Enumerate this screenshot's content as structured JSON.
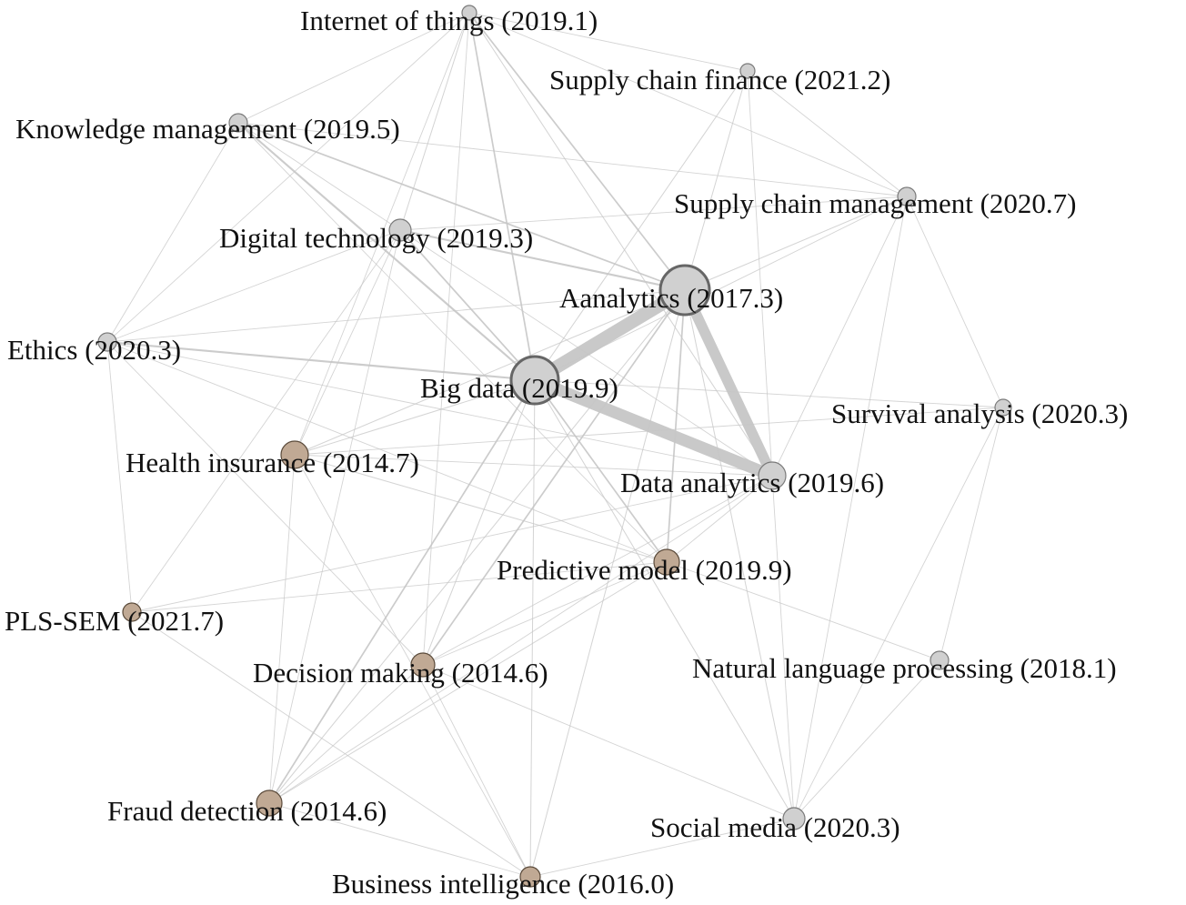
{
  "colors": {
    "default_node": "#d0d0d0",
    "default_stroke": "#7a7a7a",
    "hub_stroke": "#666666",
    "early_node": "#c0a994",
    "early_stroke": "#5a4a3a",
    "edge": "#c6c6c6",
    "strong_edge": "#c9c9c9"
  },
  "nodes": [
    {
      "id": "iot",
      "label": "Internet of things (2019.1)",
      "group": "default"
    },
    {
      "id": "scf",
      "label": "Supply chain finance (2021.2)",
      "group": "default"
    },
    {
      "id": "km",
      "label": "Knowledge management (2019.5)",
      "group": "default"
    },
    {
      "id": "scm",
      "label": "Supply chain management (2020.7)",
      "group": "default"
    },
    {
      "id": "dt",
      "label": "Digital technology (2019.3)",
      "group": "default"
    },
    {
      "id": "an",
      "label": "Aanalytics (2017.3)",
      "group": "hub"
    },
    {
      "id": "eth",
      "label": "Ethics (2020.3)",
      "group": "default"
    },
    {
      "id": "bd",
      "label": "Big data (2019.9)",
      "group": "hub"
    },
    {
      "id": "sa",
      "label": "Survival analysis (2020.3)",
      "group": "default"
    },
    {
      "id": "hi",
      "label": "Health insurance (2014.7)",
      "group": "early"
    },
    {
      "id": "da",
      "label": "Data analytics (2019.6)",
      "group": "default"
    },
    {
      "id": "pm",
      "label": "Predictive model (2019.9)",
      "group": "early"
    },
    {
      "id": "pls",
      "label": "PLS-SEM (2021.7)",
      "group": "early"
    },
    {
      "id": "nlp",
      "label": "Natural language processing (2018.1)",
      "group": "default"
    },
    {
      "id": "dm",
      "label": "Decision making (2014.6)",
      "group": "early"
    },
    {
      "id": "fd",
      "label": "Fraud detection (2014.6)",
      "group": "early"
    },
    {
      "id": "sm",
      "label": "Social media (2020.3)",
      "group": "default"
    },
    {
      "id": "bi",
      "label": "Business intelligence (2016.0)",
      "group": "early"
    }
  ],
  "edges": [
    {
      "source": "bd",
      "target": "an",
      "weight": 10
    },
    {
      "source": "bd",
      "target": "da",
      "weight": 9
    },
    {
      "source": "an",
      "target": "da",
      "weight": 8
    },
    {
      "source": "km",
      "target": "bd",
      "weight": 2.5
    },
    {
      "source": "km",
      "target": "an",
      "weight": 2
    },
    {
      "source": "dt",
      "target": "an",
      "weight": 2.5
    },
    {
      "source": "dt",
      "target": "bd",
      "weight": 2
    },
    {
      "source": "eth",
      "target": "bd",
      "weight": 2.5
    },
    {
      "source": "iot",
      "target": "bd",
      "weight": 2
    },
    {
      "source": "iot",
      "target": "an",
      "weight": 2
    },
    {
      "source": "bd",
      "target": "pm",
      "weight": 2
    },
    {
      "source": "an",
      "target": "pm",
      "weight": 2
    },
    {
      "source": "an",
      "target": "dm",
      "weight": 2
    },
    {
      "source": "bd",
      "target": "fd",
      "weight": 2
    },
    {
      "source": "iot",
      "target": "da",
      "weight": 1.2
    },
    {
      "source": "iot",
      "target": "dt",
      "weight": 1.2
    },
    {
      "source": "iot",
      "target": "km",
      "weight": 1
    },
    {
      "source": "iot",
      "target": "scf",
      "weight": 1
    },
    {
      "source": "iot",
      "target": "scm",
      "weight": 1
    },
    {
      "source": "iot",
      "target": "eth",
      "weight": 1
    },
    {
      "source": "iot",
      "target": "hi",
      "weight": 1
    },
    {
      "source": "iot",
      "target": "dm",
      "weight": 1
    },
    {
      "source": "scf",
      "target": "bd",
      "weight": 1.2
    },
    {
      "source": "scf",
      "target": "an",
      "weight": 1.2
    },
    {
      "source": "scf",
      "target": "scm",
      "weight": 1
    },
    {
      "source": "scf",
      "target": "da",
      "weight": 1
    },
    {
      "source": "scm",
      "target": "an",
      "weight": 1.2
    },
    {
      "source": "scm",
      "target": "bd",
      "weight": 1
    },
    {
      "source": "scm",
      "target": "da",
      "weight": 1
    },
    {
      "source": "scm",
      "target": "sa",
      "weight": 1
    },
    {
      "source": "scm",
      "target": "sm",
      "weight": 1
    },
    {
      "source": "scm",
      "target": "dt",
      "weight": 1
    },
    {
      "source": "scm",
      "target": "km",
      "weight": 1
    },
    {
      "source": "km",
      "target": "eth",
      "weight": 1
    },
    {
      "source": "km",
      "target": "pm",
      "weight": 1
    },
    {
      "source": "km",
      "target": "dt",
      "weight": 1
    },
    {
      "source": "dt",
      "target": "eth",
      "weight": 1
    },
    {
      "source": "dt",
      "target": "hi",
      "weight": 1
    },
    {
      "source": "dt",
      "target": "pls",
      "weight": 1
    },
    {
      "source": "dt",
      "target": "da",
      "weight": 1
    },
    {
      "source": "dt",
      "target": "fd",
      "weight": 1
    },
    {
      "source": "eth",
      "target": "an",
      "weight": 1
    },
    {
      "source": "eth",
      "target": "da",
      "weight": 1
    },
    {
      "source": "eth",
      "target": "pm",
      "weight": 1
    },
    {
      "source": "bd",
      "target": "sa",
      "weight": 1
    },
    {
      "source": "bd",
      "target": "hi",
      "weight": 1.2
    },
    {
      "source": "bd",
      "target": "sm",
      "weight": 1.2
    },
    {
      "source": "bd",
      "target": "dm",
      "weight": 1.2
    },
    {
      "source": "bd",
      "target": "bi",
      "weight": 1.2
    },
    {
      "source": "an",
      "target": "hi",
      "weight": 1.2
    },
    {
      "source": "an",
      "target": "fd",
      "weight": 1.2
    },
    {
      "source": "an",
      "target": "bi",
      "weight": 1.2
    },
    {
      "source": "an",
      "target": "sm",
      "weight": 1.2
    },
    {
      "source": "sa",
      "target": "sm",
      "weight": 1
    },
    {
      "source": "sa",
      "target": "hi",
      "weight": 1
    },
    {
      "source": "hi",
      "target": "pm",
      "weight": 1.2
    },
    {
      "source": "hi",
      "target": "fd",
      "weight": 1
    },
    {
      "source": "hi",
      "target": "bi",
      "weight": 1
    },
    {
      "source": "hi",
      "target": "da",
      "weight": 1
    },
    {
      "source": "da",
      "target": "pm",
      "weight": 1
    },
    {
      "source": "da",
      "target": "dm",
      "weight": 1
    },
    {
      "source": "da",
      "target": "pls",
      "weight": 1
    },
    {
      "source": "da",
      "target": "sm",
      "weight": 1
    },
    {
      "source": "da",
      "target": "fd",
      "weight": 1
    },
    {
      "source": "pm",
      "target": "pls",
      "weight": 1
    },
    {
      "source": "pm",
      "target": "nlp",
      "weight": 1
    },
    {
      "source": "pm",
      "target": "dm",
      "weight": 1
    },
    {
      "source": "pm",
      "target": "fd",
      "weight": 1
    },
    {
      "source": "pls",
      "target": "bi",
      "weight": 1
    },
    {
      "source": "pls",
      "target": "eth",
      "weight": 1
    },
    {
      "source": "nlp",
      "target": "sm",
      "weight": 1
    },
    {
      "source": "nlp",
      "target": "sa",
      "weight": 1
    },
    {
      "source": "dm",
      "target": "bi",
      "weight": 1
    },
    {
      "source": "dm",
      "target": "fd",
      "weight": 1
    },
    {
      "source": "dm",
      "target": "sm",
      "weight": 1
    },
    {
      "source": "dm",
      "target": "eth",
      "weight": 1
    },
    {
      "source": "fd",
      "target": "bi",
      "weight": 1
    },
    {
      "source": "bi",
      "target": "sm",
      "weight": 1
    }
  ]
}
